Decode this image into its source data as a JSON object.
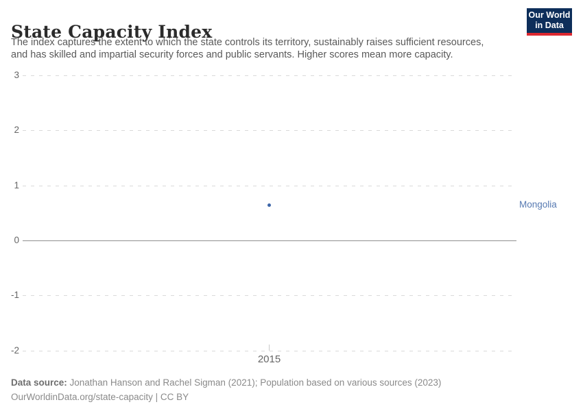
{
  "header": {
    "title": "State Capacity Index",
    "subtitle_line1": "The index captures the extent to which the state controls its territory, sustainably raises sufficient resources,",
    "subtitle_line2": "and has skilled and impartial security forces and public servants. Higher scores mean more capacity."
  },
  "logo": {
    "line1": "Our World",
    "line2": "in Data",
    "bg_color": "#0d2e5a",
    "bar_color": "#dc2830"
  },
  "chart_data": {
    "type": "scatter",
    "title": "State Capacity Index",
    "xlabel": "",
    "ylabel": "",
    "x": [
      2015
    ],
    "series": [
      {
        "name": "Mongolia",
        "values": [
          0.65
        ],
        "color": "#3d66a8"
      }
    ],
    "xlim": [
      2015,
      2015
    ],
    "ylim": [
      -2,
      3
    ],
    "yticks": [
      "3",
      "2",
      "1",
      "0",
      "-1",
      "-2"
    ],
    "xticks": [
      "2015"
    ],
    "grid": "horizontal-dashed",
    "gridline_color": "#d9d9d9",
    "zero_line": true,
    "zero_line_color": "#8f8f8f",
    "legend_position": "right-of-point",
    "entity_label": "Mongolia",
    "entity_label_color": "#577ab2"
  },
  "footer": {
    "datasource_label": "Data source:",
    "datasource_text": " Jonathan Hanson and Rachel Sigman (2021); Population based on various sources (2023)",
    "url_text": "OurWorldinData.org/state-capacity",
    "separator": " | ",
    "license_text": "CC BY"
  }
}
